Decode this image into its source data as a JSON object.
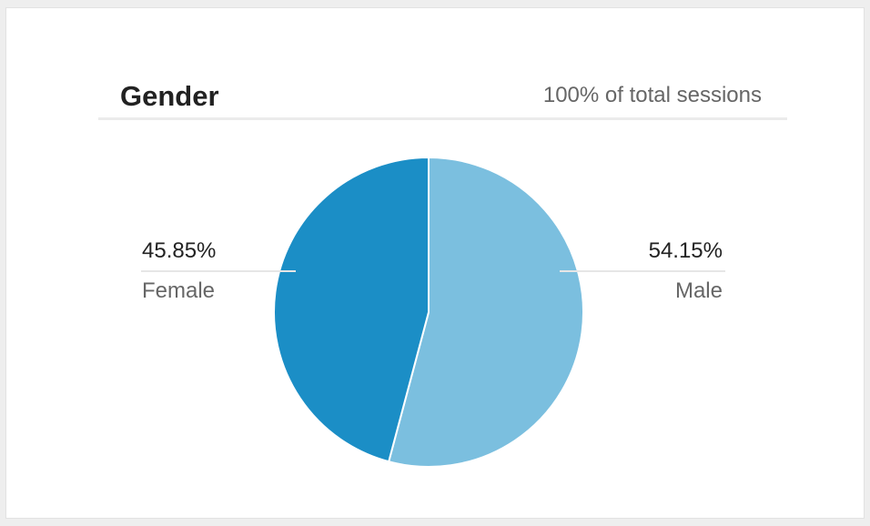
{
  "card": {
    "title": "Gender",
    "subtitle": "100% of total sessions"
  },
  "colors": {
    "female": "#1b8ec6",
    "male": "#7bbfdf"
  },
  "chart_data": {
    "type": "pie",
    "title": "Gender",
    "subtitle": "100% of total sessions",
    "slices": [
      {
        "name": "Male",
        "value": 54.15,
        "label": "54.15%",
        "color": "#7bbfdf"
      },
      {
        "name": "Female",
        "value": 45.85,
        "label": "45.85%",
        "color": "#1b8ec6"
      }
    ],
    "start": "12 o'clock",
    "direction": "clockwise"
  }
}
